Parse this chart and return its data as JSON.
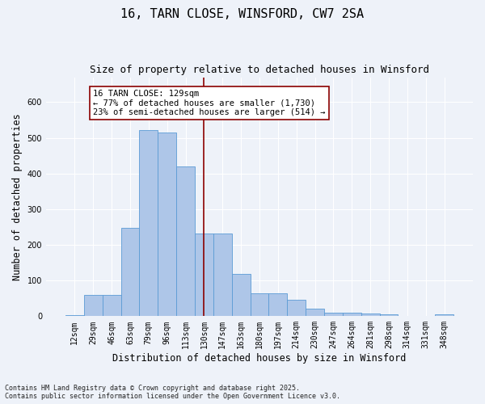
{
  "title": "16, TARN CLOSE, WINSFORD, CW7 2SA",
  "subtitle": "Size of property relative to detached houses in Winsford",
  "xlabel": "Distribution of detached houses by size in Winsford",
  "ylabel": "Number of detached properties",
  "categories": [
    "12sqm",
    "29sqm",
    "46sqm",
    "63sqm",
    "79sqm",
    "96sqm",
    "113sqm",
    "130sqm",
    "147sqm",
    "163sqm",
    "180sqm",
    "197sqm",
    "214sqm",
    "230sqm",
    "247sqm",
    "264sqm",
    "281sqm",
    "298sqm",
    "314sqm",
    "331sqm",
    "348sqm"
  ],
  "values": [
    3,
    60,
    60,
    248,
    522,
    515,
    420,
    232,
    232,
    118,
    65,
    65,
    47,
    22,
    10,
    10,
    8,
    5,
    1,
    0,
    5
  ],
  "bar_color": "#aec6e8",
  "bar_edge_color": "#5b9bd5",
  "highlight_index": 7,
  "vline_color": "#8b0000",
  "annotation_text": "16 TARN CLOSE: 129sqm\n← 77% of detached houses are smaller (1,730)\n23% of semi-detached houses are larger (514) →",
  "annotation_box_color": "#ffffff",
  "annotation_box_edge": "#8b0000",
  "footnote": "Contains HM Land Registry data © Crown copyright and database right 2025.\nContains public sector information licensed under the Open Government Licence v3.0.",
  "background_color": "#eef2f9",
  "grid_color": "#ffffff",
  "ylim": [
    0,
    670
  ],
  "title_fontsize": 11,
  "subtitle_fontsize": 9,
  "tick_fontsize": 7,
  "ylabel_fontsize": 8.5,
  "xlabel_fontsize": 8.5,
  "footnote_fontsize": 6,
  "annot_fontsize": 7.5
}
